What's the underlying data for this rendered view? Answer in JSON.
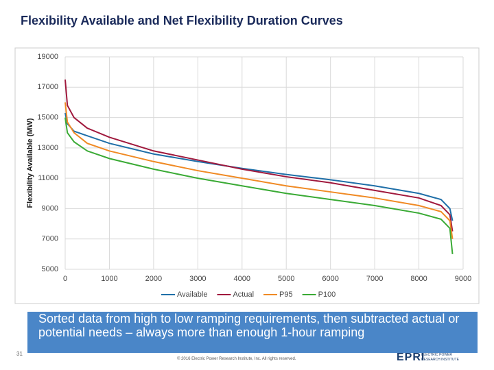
{
  "slide": {
    "title": "Flexibility Available and Net Flexibility Duration Curves",
    "callout": "Sorted data from high to low ramping requirements, then subtracted actual or potential needs – always more than enough 1-hour ramping",
    "page_number": "31",
    "footer": "© 2016 Electric Power Research Institute, Inc. All rights reserved.",
    "logo": "EPRI",
    "logo_caption": "ELECTRIC POWER RESEARCH INSTITUTE"
  },
  "chart_data": {
    "type": "line",
    "y_label": "Flexibility Available (MW)",
    "x": [
      0,
      50,
      200,
      500,
      1000,
      2000,
      3000,
      4000,
      5000,
      6000,
      7000,
      8000,
      8500,
      8700,
      8760
    ],
    "series": [
      {
        "name": "Available",
        "color": "#1f6fa8",
        "values": [
          15300,
          14600,
          14100,
          13800,
          13300,
          12600,
          12100,
          11650,
          11250,
          10900,
          10500,
          10000,
          9600,
          9000,
          8200
        ]
      },
      {
        "name": "Actual",
        "color": "#a0193d",
        "values": [
          17500,
          15800,
          15000,
          14300,
          13700,
          12800,
          12200,
          11600,
          11100,
          10700,
          10200,
          9700,
          9200,
          8600,
          7500
        ]
      },
      {
        "name": "P95",
        "color": "#f08a24",
        "values": [
          16000,
          14700,
          14000,
          13300,
          12800,
          12100,
          11500,
          11000,
          10500,
          10100,
          9700,
          9200,
          8800,
          8200,
          7000
        ]
      },
      {
        "name": "P100",
        "color": "#3aaa35",
        "values": [
          15000,
          14000,
          13400,
          12800,
          12300,
          11600,
          11000,
          10500,
          10000,
          9600,
          9200,
          8700,
          8300,
          7700,
          6000
        ]
      }
    ],
    "xlim": [
      0,
      9000
    ],
    "xticks": [
      0,
      1000,
      2000,
      3000,
      4000,
      5000,
      6000,
      7000,
      8000,
      9000
    ],
    "ylim": [
      5000,
      19000
    ],
    "yticks": [
      5000,
      7000,
      9000,
      11000,
      13000,
      15000,
      17000,
      19000
    ],
    "grid": true,
    "legend": "bottom"
  }
}
